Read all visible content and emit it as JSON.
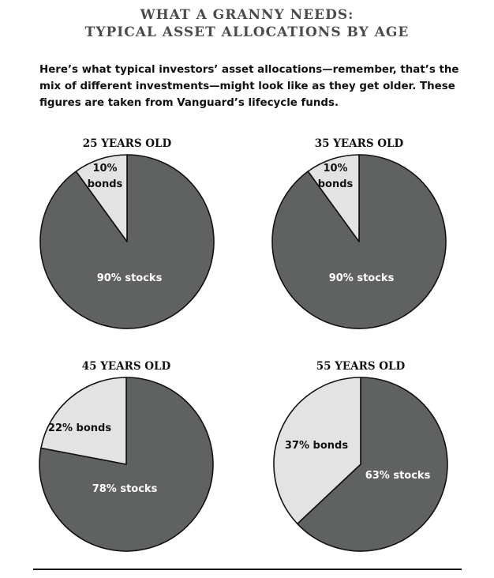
{
  "header": {
    "title_line1": "WHAT A GRANNY NEEDS:",
    "title_line2": "TYPICAL ASSET ALLOCATIONS BY AGE",
    "intro": "Here’s what typical investors’ asset allocations—remember, that’s the mix of different investments—might look like as they get older. These figures are taken from Vanguard’s lifecycle funds."
  },
  "colors": {
    "stocks": "#606262",
    "bonds": "#e3e3e3",
    "outline": "#111111",
    "stocks_text": "#ffffff",
    "bonds_text": "#111111"
  },
  "chart_data": [
    {
      "type": "pie",
      "title": "25 YEARS OLD",
      "slices": [
        {
          "name": "bonds",
          "value": 10,
          "label": [
            "10%",
            "bonds"
          ]
        },
        {
          "name": "stocks",
          "value": 90,
          "label": [
            "90% stocks"
          ]
        }
      ]
    },
    {
      "type": "pie",
      "title": "35 YEARS OLD",
      "slices": [
        {
          "name": "bonds",
          "value": 10,
          "label": [
            "10%",
            "bonds"
          ]
        },
        {
          "name": "stocks",
          "value": 90,
          "label": [
            "90% stocks"
          ]
        }
      ]
    },
    {
      "type": "pie",
      "title": "45 YEARS OLD",
      "slices": [
        {
          "name": "bonds",
          "value": 22,
          "label": [
            "22% bonds"
          ]
        },
        {
          "name": "stocks",
          "value": 78,
          "label": [
            "78% stocks"
          ]
        }
      ]
    },
    {
      "type": "pie",
      "title": "55 YEARS OLD",
      "slices": [
        {
          "name": "bonds",
          "value": 37,
          "label": [
            "37% bonds"
          ]
        },
        {
          "name": "stocks",
          "value": 63,
          "label": [
            "63% stocks"
          ]
        }
      ]
    }
  ]
}
